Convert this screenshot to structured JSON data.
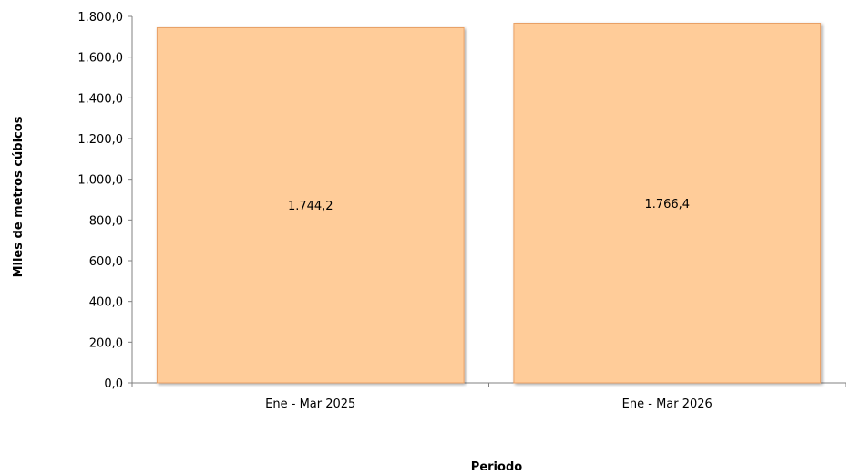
{
  "chart_data": {
    "type": "bar",
    "categories": [
      "Ene - Mar 2025",
      "Ene - Mar 2026"
    ],
    "values": [
      1744.2,
      1766.4
    ],
    "data_labels": [
      "1.744,2",
      "1.766,4"
    ],
    "xlabel": "Periodo",
    "ylabel": "Miles de metros cúbicos",
    "ylim": [
      0,
      1800
    ],
    "y_ticks": [
      0,
      200,
      400,
      600,
      800,
      1000,
      1200,
      1400,
      1600,
      1800
    ],
    "y_tick_labels": [
      "0,0",
      "200,0",
      "400,0",
      "600,0",
      "800,0",
      "1.000,0",
      "1.200,0",
      "1.400,0",
      "1.600,0",
      "1.800,0"
    ],
    "grid": false,
    "legend": "none",
    "bar_color": "#FFCC99",
    "bar_edge_color": "#E8A066"
  }
}
